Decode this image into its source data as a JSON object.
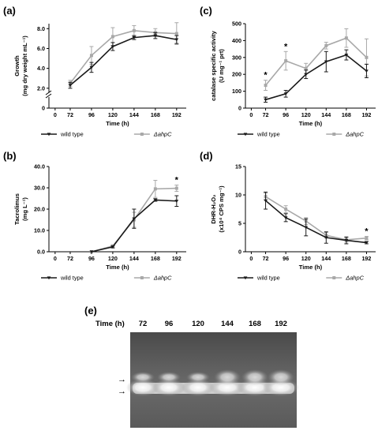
{
  "colors": {
    "wild_type": "#1a1a1a",
    "ahpC": "#a8a8a8"
  },
  "chart_data": [
    {
      "panel": "(a)",
      "type": "line",
      "xlabel": "Time (h)",
      "ylabel": "Growth",
      "ylabel2": "(mg dry weight mL⁻¹)",
      "x_ticks": [
        "0",
        "72",
        "96",
        "120",
        "144",
        "168",
        "192"
      ],
      "y_ticks": [
        "0",
        "2.0",
        "4.0",
        "6.0",
        "8.0"
      ],
      "ylim": [
        0,
        8.5
      ],
      "axis_break": true,
      "x": [
        72,
        96,
        120,
        144,
        168,
        192
      ],
      "series": [
        {
          "name": "wild type",
          "values": [
            2.3,
            4.1,
            6.2,
            7.1,
            7.3,
            6.9
          ],
          "err": [
            0.3,
            0.5,
            0.4,
            0.2,
            0.3,
            0.4
          ]
        },
        {
          "name": "ΔahpC",
          "values": [
            2.5,
            5.3,
            7.2,
            7.8,
            7.6,
            7.5
          ],
          "err": [
            0.3,
            0.9,
            0.9,
            0.5,
            0.4,
            1.1
          ]
        }
      ],
      "annotations": [],
      "legend": {
        "position": "bottom",
        "items": [
          "wild type",
          "ΔahpC"
        ]
      }
    },
    {
      "panel": "(c)",
      "type": "line",
      "xlabel": "Time (h)",
      "ylabel": "catalase specific activity",
      "ylabel2": "(U mg⁻¹ prt)",
      "x_ticks": [
        "0",
        "72",
        "96",
        "120",
        "144",
        "168",
        "192"
      ],
      "y_ticks": [
        "0",
        "100",
        "200",
        "300",
        "400",
        "500"
      ],
      "ylim": [
        0,
        500
      ],
      "x": [
        72,
        96,
        120,
        144,
        168,
        192
      ],
      "series": [
        {
          "name": "wild type",
          "values": [
            50,
            85,
            200,
            275,
            315,
            220
          ],
          "err": [
            15,
            20,
            25,
            60,
            30,
            40
          ]
        },
        {
          "name": "ΔahpC",
          "values": [
            135,
            280,
            235,
            370,
            415,
            300
          ],
          "err": [
            30,
            55,
            30,
            20,
            55,
            110
          ]
        }
      ],
      "annotations": [
        {
          "x": 72,
          "text": "*"
        },
        {
          "x": 96,
          "text": "*"
        }
      ],
      "legend": {
        "position": "bottom",
        "items": [
          "wild type",
          "ΔahpC"
        ]
      }
    },
    {
      "panel": "(b)",
      "type": "line",
      "xlabel": "Time (h)",
      "ylabel": "Tacrolimus",
      "ylabel2": "(mg L⁻¹)",
      "x_ticks": [
        "0",
        "72",
        "96",
        "120",
        "144",
        "168",
        "192"
      ],
      "y_ticks": [
        "0.0",
        "10.0",
        "20.0",
        "30.0",
        "40.0"
      ],
      "ylim": [
        0,
        40
      ],
      "x": [
        96,
        120,
        144,
        168,
        192
      ],
      "series": [
        {
          "name": "wild type",
          "values": [
            0,
            2.3,
            15.5,
            24.3,
            23.8
          ],
          "err": [
            0,
            0.5,
            4.5,
            0.6,
            2.5
          ]
        },
        {
          "name": "ΔahpC",
          "values": [
            0,
            2.7,
            15.0,
            29.5,
            29.8
          ],
          "err": [
            0,
            0.6,
            3.5,
            4.0,
            1.5
          ]
        }
      ],
      "annotations": [
        {
          "x": 192,
          "text": "*"
        }
      ],
      "legend": {
        "position": "bottom",
        "items": [
          "wild type",
          "ΔahpC"
        ]
      }
    },
    {
      "panel": "(d)",
      "type": "line",
      "xlabel": "Time (h)",
      "ylabel": "DHR-H₂O₂",
      "ylabel2": "(x10⁴ CPS mg⁻¹)",
      "x_ticks": [
        "0",
        "72",
        "96",
        "120",
        "144",
        "168",
        "192"
      ],
      "y_ticks": [
        "0",
        "5",
        "10",
        "15"
      ],
      "ylim": [
        0,
        15
      ],
      "x": [
        72,
        96,
        120,
        144,
        168,
        192
      ],
      "series": [
        {
          "name": "wild type",
          "values": [
            9.0,
            6.0,
            4.3,
            2.5,
            2.0,
            1.6
          ],
          "err": [
            1.5,
            0.7,
            1.5,
            1.0,
            0.6,
            0.2
          ]
        },
        {
          "name": "ΔahpC",
          "values": [
            9.7,
            7.5,
            5.4,
            2.9,
            2.1,
            2.4
          ],
          "err": [
            0.6,
            0.6,
            0.6,
            0.5,
            0.4,
            0.3
          ]
        }
      ],
      "annotations": [
        {
          "x": 192,
          "text": "*"
        }
      ],
      "legend": {
        "position": "bottom",
        "items": [
          "wild type",
          "ΔahpC"
        ]
      }
    }
  ],
  "gel": {
    "panel": "(e)",
    "time_label": "Time (h)",
    "lanes": [
      "72",
      "96",
      "120",
      "144",
      "168",
      "192"
    ],
    "arrows": [
      "→",
      "→"
    ]
  }
}
